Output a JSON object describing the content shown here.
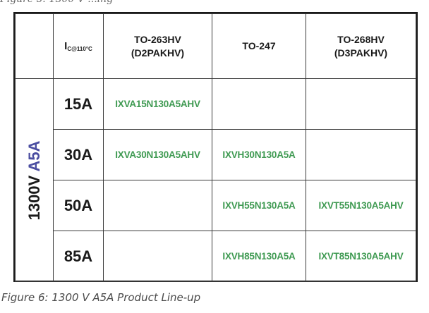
{
  "top_fragment": "Figure 5: 1300 V ...ing",
  "table": {
    "header": {
      "current_label": "I",
      "current_sub": "C@110°C",
      "packages": [
        {
          "line1": "TO-263HV",
          "line2": "(D2PAKHV)"
        },
        {
          "line1": "TO-247",
          "line2": ""
        },
        {
          "line1": "TO-268HV",
          "line2": "(D3PAKHV)"
        }
      ]
    },
    "voltage_label": {
      "number": "1300V",
      "series": "A5A"
    },
    "rows": [
      {
        "current": "15A",
        "parts": [
          "IXVA15N130A5AHV",
          "",
          ""
        ]
      },
      {
        "current": "30A",
        "parts": [
          "IXVA30N130A5AHV",
          "IXVH30N130A5A",
          ""
        ]
      },
      {
        "current": "50A",
        "parts": [
          "",
          "IXVH55N130A5A",
          "IXVT55N130A5AHV"
        ]
      },
      {
        "current": "85A",
        "parts": [
          "",
          "IXVH85N130A5A",
          "IXVT85N130A5AHV"
        ]
      }
    ]
  },
  "caption": "Figure 6: 1300 V A5A Product Line-up",
  "colors": {
    "part_number": "#3f9a52",
    "series_accent": "#4b4ea1",
    "text": "#1a1a1a",
    "caption": "#4a4a4a"
  }
}
